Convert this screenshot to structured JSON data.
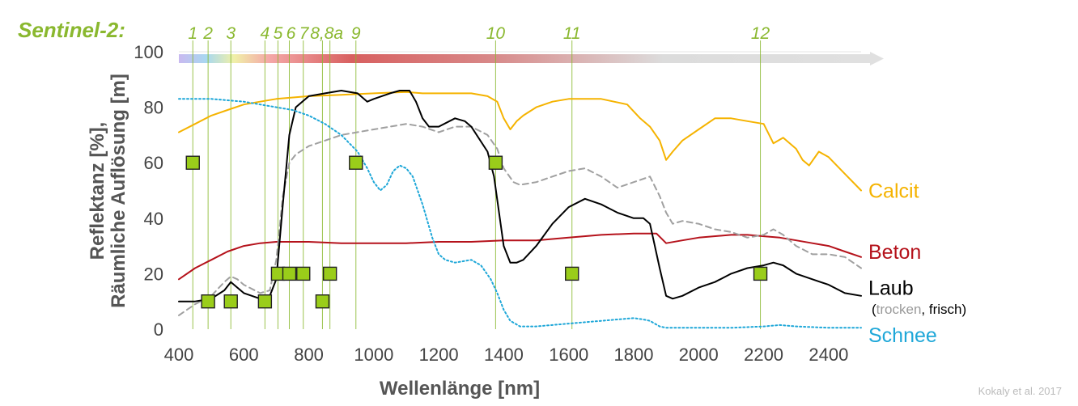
{
  "chart_data": {
    "type": "line",
    "mission_label": "Sentinel-2:",
    "xlabel": "Wellenlänge [nm]",
    "ylabel": [
      "Reflektanz [%],",
      "Räumliche Auflösung [m]"
    ],
    "xlim": [
      400,
      2500
    ],
    "ylim": [
      0,
      100
    ],
    "x_ticks": [
      400,
      600,
      800,
      1000,
      1200,
      1400,
      1600,
      1800,
      2000,
      2200,
      2400
    ],
    "y_ticks": [
      0,
      20,
      40,
      60,
      80,
      100
    ],
    "credit": "Kokaly et al. 2017",
    "colors": {
      "green": "#8ab82f",
      "band_fill": "#9acd1a",
      "calcit": "#f5b300",
      "beton": "#b5121b",
      "laub_trocken": "#a0a0a0",
      "laub_frisch": "#000000",
      "schnee": "#1ea7d8"
    },
    "bands": [
      {
        "label": "1",
        "wavelength": 443,
        "resolution": 60
      },
      {
        "label": "2",
        "wavelength": 490,
        "resolution": 10
      },
      {
        "label": "3",
        "wavelength": 560,
        "resolution": 10
      },
      {
        "label": "4",
        "wavelength": 665,
        "resolution": 10
      },
      {
        "label": "5",
        "wavelength": 705,
        "resolution": 20
      },
      {
        "label": "6",
        "wavelength": 740,
        "resolution": 20
      },
      {
        "label": "7",
        "wavelength": 783,
        "resolution": 20
      },
      {
        "label": "8",
        "wavelength": 842,
        "resolution": 10
      },
      {
        "label": "8a",
        "wavelength": 865,
        "resolution": 20
      },
      {
        "label": "9",
        "wavelength": 945,
        "resolution": 60
      },
      {
        "label": "10",
        "wavelength": 1375,
        "resolution": 60
      },
      {
        "label": "11",
        "wavelength": 1610,
        "resolution": 20
      },
      {
        "label": "12",
        "wavelength": 2190,
        "resolution": 20
      }
    ],
    "band_label_groups": [
      {
        "text": "1",
        "wavelength": 443
      },
      {
        "text": "2",
        "wavelength": 490
      },
      {
        "text": "3",
        "wavelength": 560
      },
      {
        "text": "4",
        "wavelength": 665
      },
      {
        "text": "5",
        "wavelength": 705
      },
      {
        "text": "6",
        "wavelength": 745
      },
      {
        "text": "7",
        "wavelength": 785
      },
      {
        "text": "8,8a",
        "wavelength": 855
      },
      {
        "text": "9",
        "wavelength": 945
      },
      {
        "text": "10",
        "wavelength": 1375
      },
      {
        "text": "11",
        "wavelength": 1610
      },
      {
        "text": "12",
        "wavelength": 2190
      }
    ],
    "series": [
      {
        "name": "Calcit",
        "style": "solid",
        "x": [
          400,
          450,
          500,
          550,
          600,
          650,
          700,
          800,
          900,
          1000,
          1100,
          1150,
          1200,
          1300,
          1350,
          1380,
          1400,
          1420,
          1440,
          1460,
          1500,
          1550,
          1600,
          1700,
          1780,
          1820,
          1850,
          1880,
          1900,
          1920,
          1950,
          2000,
          2050,
          2100,
          2150,
          2200,
          2230,
          2260,
          2300,
          2320,
          2340,
          2370,
          2400,
          2450,
          2500
        ],
        "y": [
          71,
          74,
          77,
          79,
          81,
          82,
          83,
          84,
          84.5,
          85,
          85.5,
          85,
          85,
          85,
          84,
          82,
          76,
          72,
          75,
          77,
          80,
          82,
          83,
          83,
          81,
          76,
          73,
          68,
          61,
          64,
          68,
          72,
          76,
          76,
          75,
          74,
          67,
          69,
          65,
          61,
          59,
          64,
          62,
          56,
          50
        ]
      },
      {
        "name": "Beton",
        "style": "solid",
        "x": [
          400,
          450,
          500,
          550,
          600,
          650,
          700,
          800,
          900,
          1000,
          1100,
          1200,
          1300,
          1400,
          1500,
          1600,
          1700,
          1800,
          1870,
          1900,
          1950,
          2000,
          2100,
          2150,
          2200,
          2250,
          2300,
          2350,
          2400,
          2450,
          2500
        ],
        "y": [
          18,
          22,
          25,
          28,
          30,
          31,
          31.5,
          31.5,
          31,
          31,
          31,
          31.5,
          31.5,
          32,
          32,
          33,
          34,
          34.5,
          34.5,
          31,
          32,
          33,
          34,
          34,
          33.5,
          33,
          32,
          31,
          30,
          28,
          26
        ]
      },
      {
        "name": "Laub (trocken)",
        "style": "dashed",
        "x": [
          400,
          450,
          500,
          540,
          560,
          580,
          600,
          650,
          680,
          700,
          720,
          740,
          760,
          800,
          850,
          900,
          1000,
          1050,
          1100,
          1150,
          1200,
          1250,
          1300,
          1350,
          1380,
          1400,
          1430,
          1450,
          1500,
          1550,
          1600,
          1650,
          1700,
          1750,
          1800,
          1850,
          1880,
          1900,
          1920,
          1950,
          2000,
          2050,
          2100,
          2150,
          2200,
          2230,
          2260,
          2300,
          2350,
          2400,
          2450,
          2500
        ],
        "y": [
          5,
          9,
          12,
          17,
          19,
          18,
          16,
          13,
          14,
          25,
          48,
          60,
          63,
          66,
          68,
          70,
          72,
          73,
          74,
          73,
          71,
          73,
          73,
          70,
          65,
          58,
          53,
          52,
          53,
          55,
          57,
          58,
          55,
          51,
          53,
          55,
          48,
          42,
          38,
          39,
          38,
          36,
          35,
          33,
          34,
          36,
          34,
          30,
          27,
          27,
          26,
          22
        ]
      },
      {
        "name": "Laub (frisch)",
        "style": "solid",
        "x": [
          400,
          450,
          500,
          540,
          560,
          580,
          600,
          650,
          680,
          700,
          720,
          740,
          760,
          800,
          850,
          900,
          950,
          980,
          1000,
          1050,
          1080,
          1110,
          1130,
          1150,
          1170,
          1200,
          1250,
          1280,
          1300,
          1350,
          1370,
          1400,
          1420,
          1440,
          1460,
          1500,
          1550,
          1600,
          1650,
          1700,
          1750,
          1800,
          1830,
          1850,
          1880,
          1900,
          1920,
          1950,
          2000,
          2050,
          2100,
          2150,
          2200,
          2230,
          2260,
          2300,
          2350,
          2400,
          2450,
          2500
        ],
        "y": [
          10,
          10,
          11,
          14,
          17,
          15,
          13,
          11,
          12,
          18,
          45,
          70,
          80,
          84,
          85,
          86,
          85,
          82,
          83,
          85,
          86,
          86,
          82,
          76,
          73,
          73,
          76,
          75,
          73,
          64,
          55,
          30,
          24,
          24,
          25,
          30,
          38,
          44,
          47,
          45,
          42,
          40,
          40,
          38,
          22,
          12,
          11,
          12,
          15,
          17,
          20,
          22,
          23,
          24,
          23,
          20,
          18,
          16,
          13,
          12
        ]
      },
      {
        "name": "Schnee",
        "style": "dotted",
        "x": [
          400,
          450,
          500,
          600,
          650,
          700,
          750,
          800,
          850,
          900,
          950,
          980,
          1000,
          1020,
          1040,
          1060,
          1080,
          1100,
          1120,
          1150,
          1180,
          1200,
          1220,
          1250,
          1300,
          1330,
          1360,
          1380,
          1400,
          1420,
          1450,
          1500,
          1600,
          1700,
          1750,
          1800,
          1830,
          1850,
          1880,
          1900,
          1950,
          2000,
          2100,
          2200,
          2250,
          2300,
          2400,
          2500
        ],
        "y": [
          83,
          83,
          83,
          82,
          81,
          80,
          79,
          77,
          74,
          70,
          64,
          58,
          53,
          50,
          52,
          57,
          59,
          58,
          55,
          45,
          33,
          27,
          25,
          24,
          25,
          23,
          18,
          13,
          7,
          3,
          1,
          1,
          2,
          3,
          3.5,
          4,
          3.5,
          3,
          1,
          0.5,
          0.5,
          0.5,
          0.5,
          1,
          1.5,
          1,
          0.5,
          0.5
        ]
      }
    ],
    "series_labels": [
      {
        "text": "Calcit",
        "color_key": "calcit",
        "value": 50
      },
      {
        "text": "Beton",
        "color_key": "beton",
        "value": 28
      },
      {
        "text": "Laub",
        "color_key": "laub_frisch",
        "value": 15
      },
      {
        "text": "Schnee",
        "color_key": "schnee",
        "value": -2
      }
    ],
    "laub_sublabel": {
      "open": "(",
      "trocken": "trocken",
      "sep": ", ",
      "frisch": "frisch",
      "close": ")"
    }
  }
}
